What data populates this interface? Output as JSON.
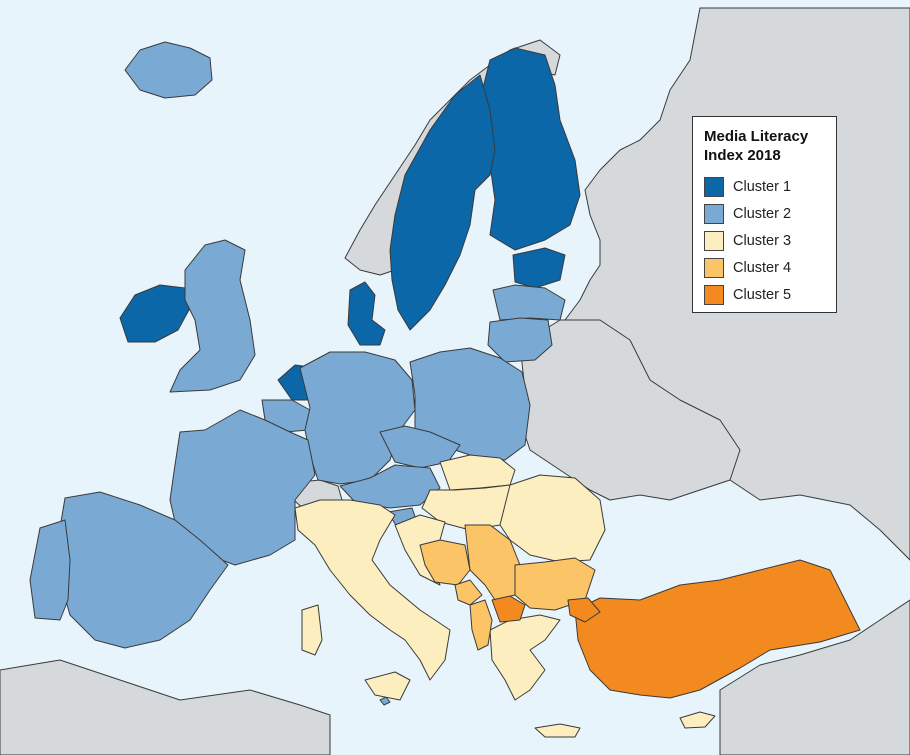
{
  "legend": {
    "title_line1": "Media Literacy",
    "title_line2": "Index 2018",
    "items": [
      {
        "label": "Cluster 1",
        "color": "#0b67a8"
      },
      {
        "label": "Cluster 2",
        "color": "#7aaad3"
      },
      {
        "label": "Cluster 3",
        "color": "#fdeec0"
      },
      {
        "label": "Cluster 4",
        "color": "#fbc467"
      },
      {
        "label": "Cluster 5",
        "color": "#f28a1f"
      }
    ]
  },
  "colors": {
    "sea": "#e7f4fb",
    "non_member": "#d5d9db",
    "border": "#3a3a3a"
  },
  "countries": [
    {
      "name": "Finland",
      "cluster": 1
    },
    {
      "name": "Sweden",
      "cluster": 1
    },
    {
      "name": "Denmark",
      "cluster": 1
    },
    {
      "name": "Netherlands",
      "cluster": 1
    },
    {
      "name": "Ireland",
      "cluster": 1
    },
    {
      "name": "Estonia",
      "cluster": 1
    },
    {
      "name": "Iceland",
      "cluster": 2
    },
    {
      "name": "United Kingdom",
      "cluster": 2
    },
    {
      "name": "Belgium",
      "cluster": 2
    },
    {
      "name": "France",
      "cluster": 2
    },
    {
      "name": "Spain",
      "cluster": 2
    },
    {
      "name": "Portugal",
      "cluster": 2
    },
    {
      "name": "Germany",
      "cluster": 2
    },
    {
      "name": "Poland",
      "cluster": 2
    },
    {
      "name": "Czech Republic",
      "cluster": 2
    },
    {
      "name": "Austria",
      "cluster": 2
    },
    {
      "name": "Slovenia",
      "cluster": 2
    },
    {
      "name": "Latvia",
      "cluster": 2
    },
    {
      "name": "Lithuania",
      "cluster": 2
    },
    {
      "name": "Malta",
      "cluster": 2
    },
    {
      "name": "Italy",
      "cluster": 3
    },
    {
      "name": "Slovakia",
      "cluster": 3
    },
    {
      "name": "Hungary",
      "cluster": 3
    },
    {
      "name": "Croatia",
      "cluster": 3
    },
    {
      "name": "Romania",
      "cluster": 3
    },
    {
      "name": "Greece",
      "cluster": 3
    },
    {
      "name": "Cyprus",
      "cluster": 3
    },
    {
      "name": "Bosnia and Herzegovina",
      "cluster": 4
    },
    {
      "name": "Serbia",
      "cluster": 4
    },
    {
      "name": "Montenegro",
      "cluster": 4
    },
    {
      "name": "Albania",
      "cluster": 4
    },
    {
      "name": "Bulgaria",
      "cluster": 4
    },
    {
      "name": "North Macedonia",
      "cluster": 5
    },
    {
      "name": "Turkey",
      "cluster": 5
    }
  ]
}
